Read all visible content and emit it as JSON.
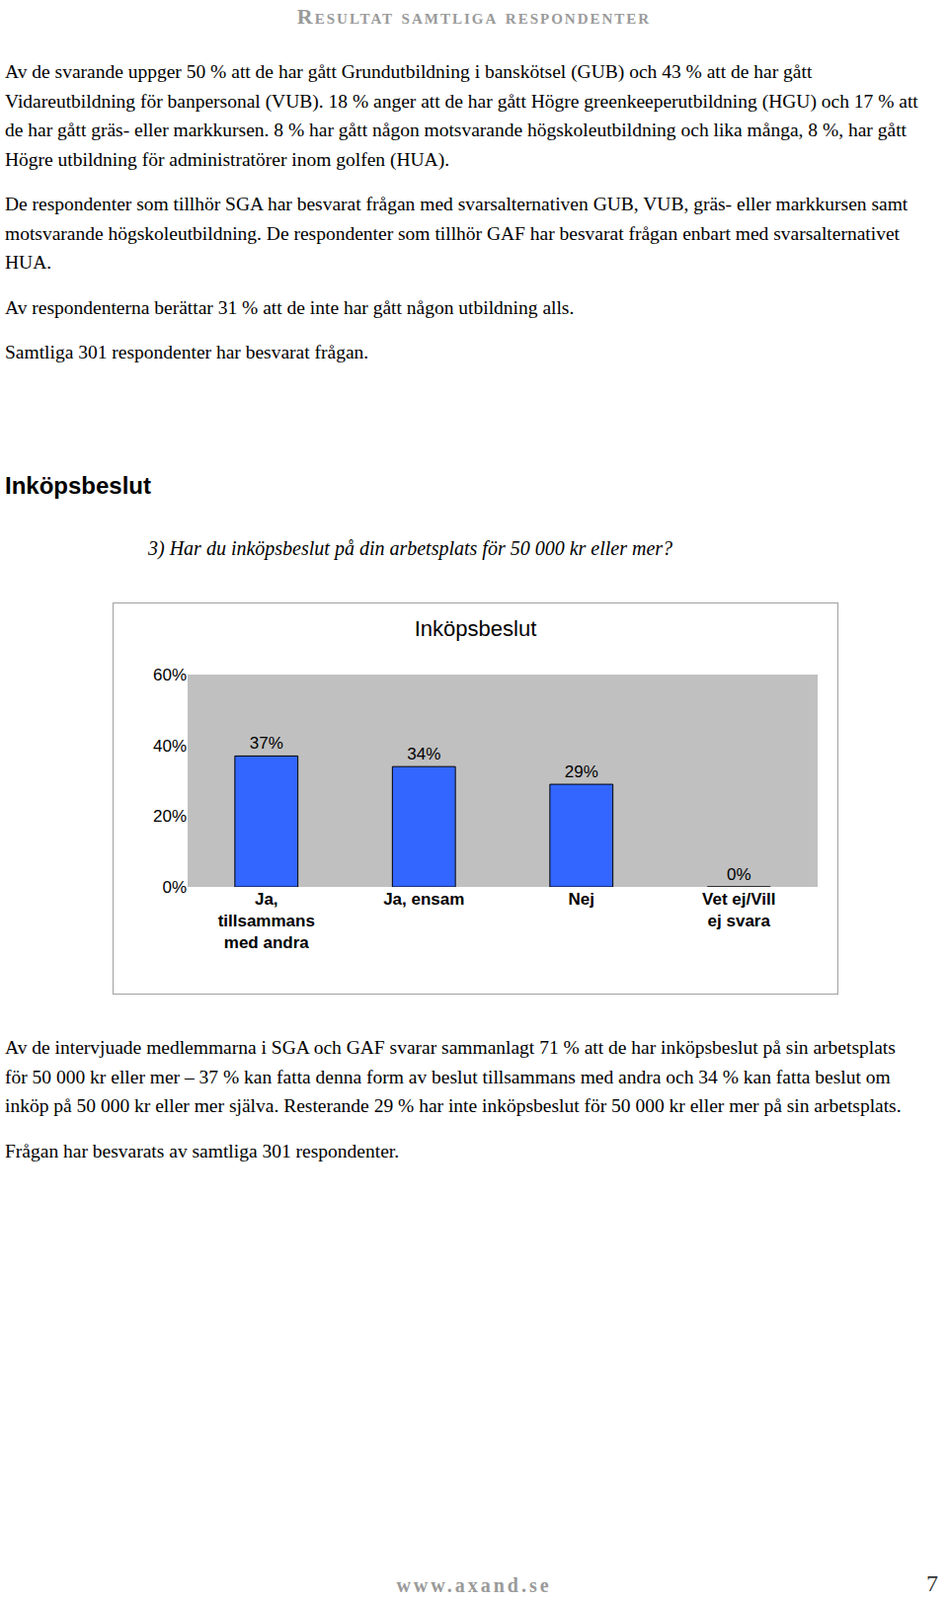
{
  "header": "Resultat samtliga respondenter",
  "paragraphs_top": [
    "Av de svarande uppger 50 % att de har gått Grundutbildning i banskötsel (GUB) och 43 % att de har gått Vidareutbildning för banpersonal (VUB). 18 % anger att de har gått Högre greenkeeperutbildning (HGU) och 17 % att de har gått gräs- eller markkursen. 8 % har gått någon motsvarande högskoleutbildning och lika många, 8 %, har gått Högre utbildning för administratörer inom golfen (HUA).",
    "De respondenter som tillhör SGA har besvarat frågan med svarsalternativen GUB, VUB, gräs- eller markkursen samt motsvarande högskoleutbildning. De respondenter som tillhör GAF har besvarat frågan enbart med svarsalternativet HUA.",
    "Av respondenterna berättar 31 % att de inte har gått någon utbildning alls.",
    "Samtliga 301 respondenter har besvarat frågan."
  ],
  "section_title": "Inköpsbeslut",
  "question": "3) Har du inköpsbeslut på din arbetsplats för 50 000 kr eller mer?",
  "chart_data": {
    "type": "bar",
    "title": "Inköpsbeslut",
    "categories": [
      "Ja, tillsammans med andra",
      "Ja, ensam",
      "Nej",
      "Vet ej/Vill ej svara"
    ],
    "values": [
      37,
      34,
      29,
      0
    ],
    "value_labels": [
      "37%",
      "34%",
      "29%",
      "0%"
    ],
    "data_labels": true,
    "color": "#3366ff",
    "ylim": [
      0,
      60
    ],
    "yticks": [
      {
        "value": 0,
        "label": "0%"
      },
      {
        "value": 20,
        "label": "20%"
      },
      {
        "value": 40,
        "label": "40%"
      },
      {
        "value": 60,
        "label": "60%"
      }
    ],
    "grid": false
  },
  "paragraphs_bottom": [
    "Av de intervjuade medlemmarna i SGA och GAF svarar sammanlagt 71 % att de har inköpsbeslut på sin arbetsplats för 50 000 kr eller mer – 37 % kan fatta denna form av beslut tillsammans med andra och 34 % kan fatta beslut om inköp på 50 000 kr eller mer själva. Resterande 29 % har inte inköpsbeslut för 50 000 kr eller mer på sin arbetsplats.",
    "Frågan har besvarats av samtliga 301 respondenter."
  ],
  "footer": {
    "url": "www.axand.se",
    "page": 7
  }
}
